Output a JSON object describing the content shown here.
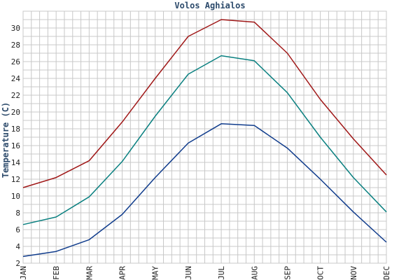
{
  "chart_data": {
    "type": "line",
    "title": "Volos Aghialos",
    "xlabel": "",
    "ylabel": "Temperature (C)",
    "categories": [
      "JAN",
      "FEB",
      "MAR",
      "APR",
      "MAY",
      "JUN",
      "JUL",
      "AUG",
      "SEP",
      "OCT",
      "NOV",
      "DEC"
    ],
    "ylim": [
      2,
      32
    ],
    "yticks": [
      2,
      4,
      6,
      8,
      10,
      12,
      14,
      16,
      18,
      20,
      22,
      24,
      26,
      28,
      30
    ],
    "grid": true,
    "series": [
      {
        "color": "#a01818",
        "values": [
          11.0,
          12.2,
          14.2,
          18.8,
          24.0,
          29.0,
          31.0,
          30.7,
          27.0,
          21.5,
          16.8,
          12.5
        ]
      },
      {
        "color": "#0a8080",
        "values": [
          6.6,
          7.5,
          9.9,
          14.1,
          19.5,
          24.5,
          26.7,
          26.1,
          22.3,
          17.0,
          12.2,
          8.1
        ]
      },
      {
        "color": "#103c8c",
        "values": [
          2.8,
          3.4,
          4.8,
          7.8,
          12.2,
          16.3,
          18.6,
          18.4,
          15.7,
          12.0,
          8.1,
          4.5
        ]
      }
    ]
  }
}
